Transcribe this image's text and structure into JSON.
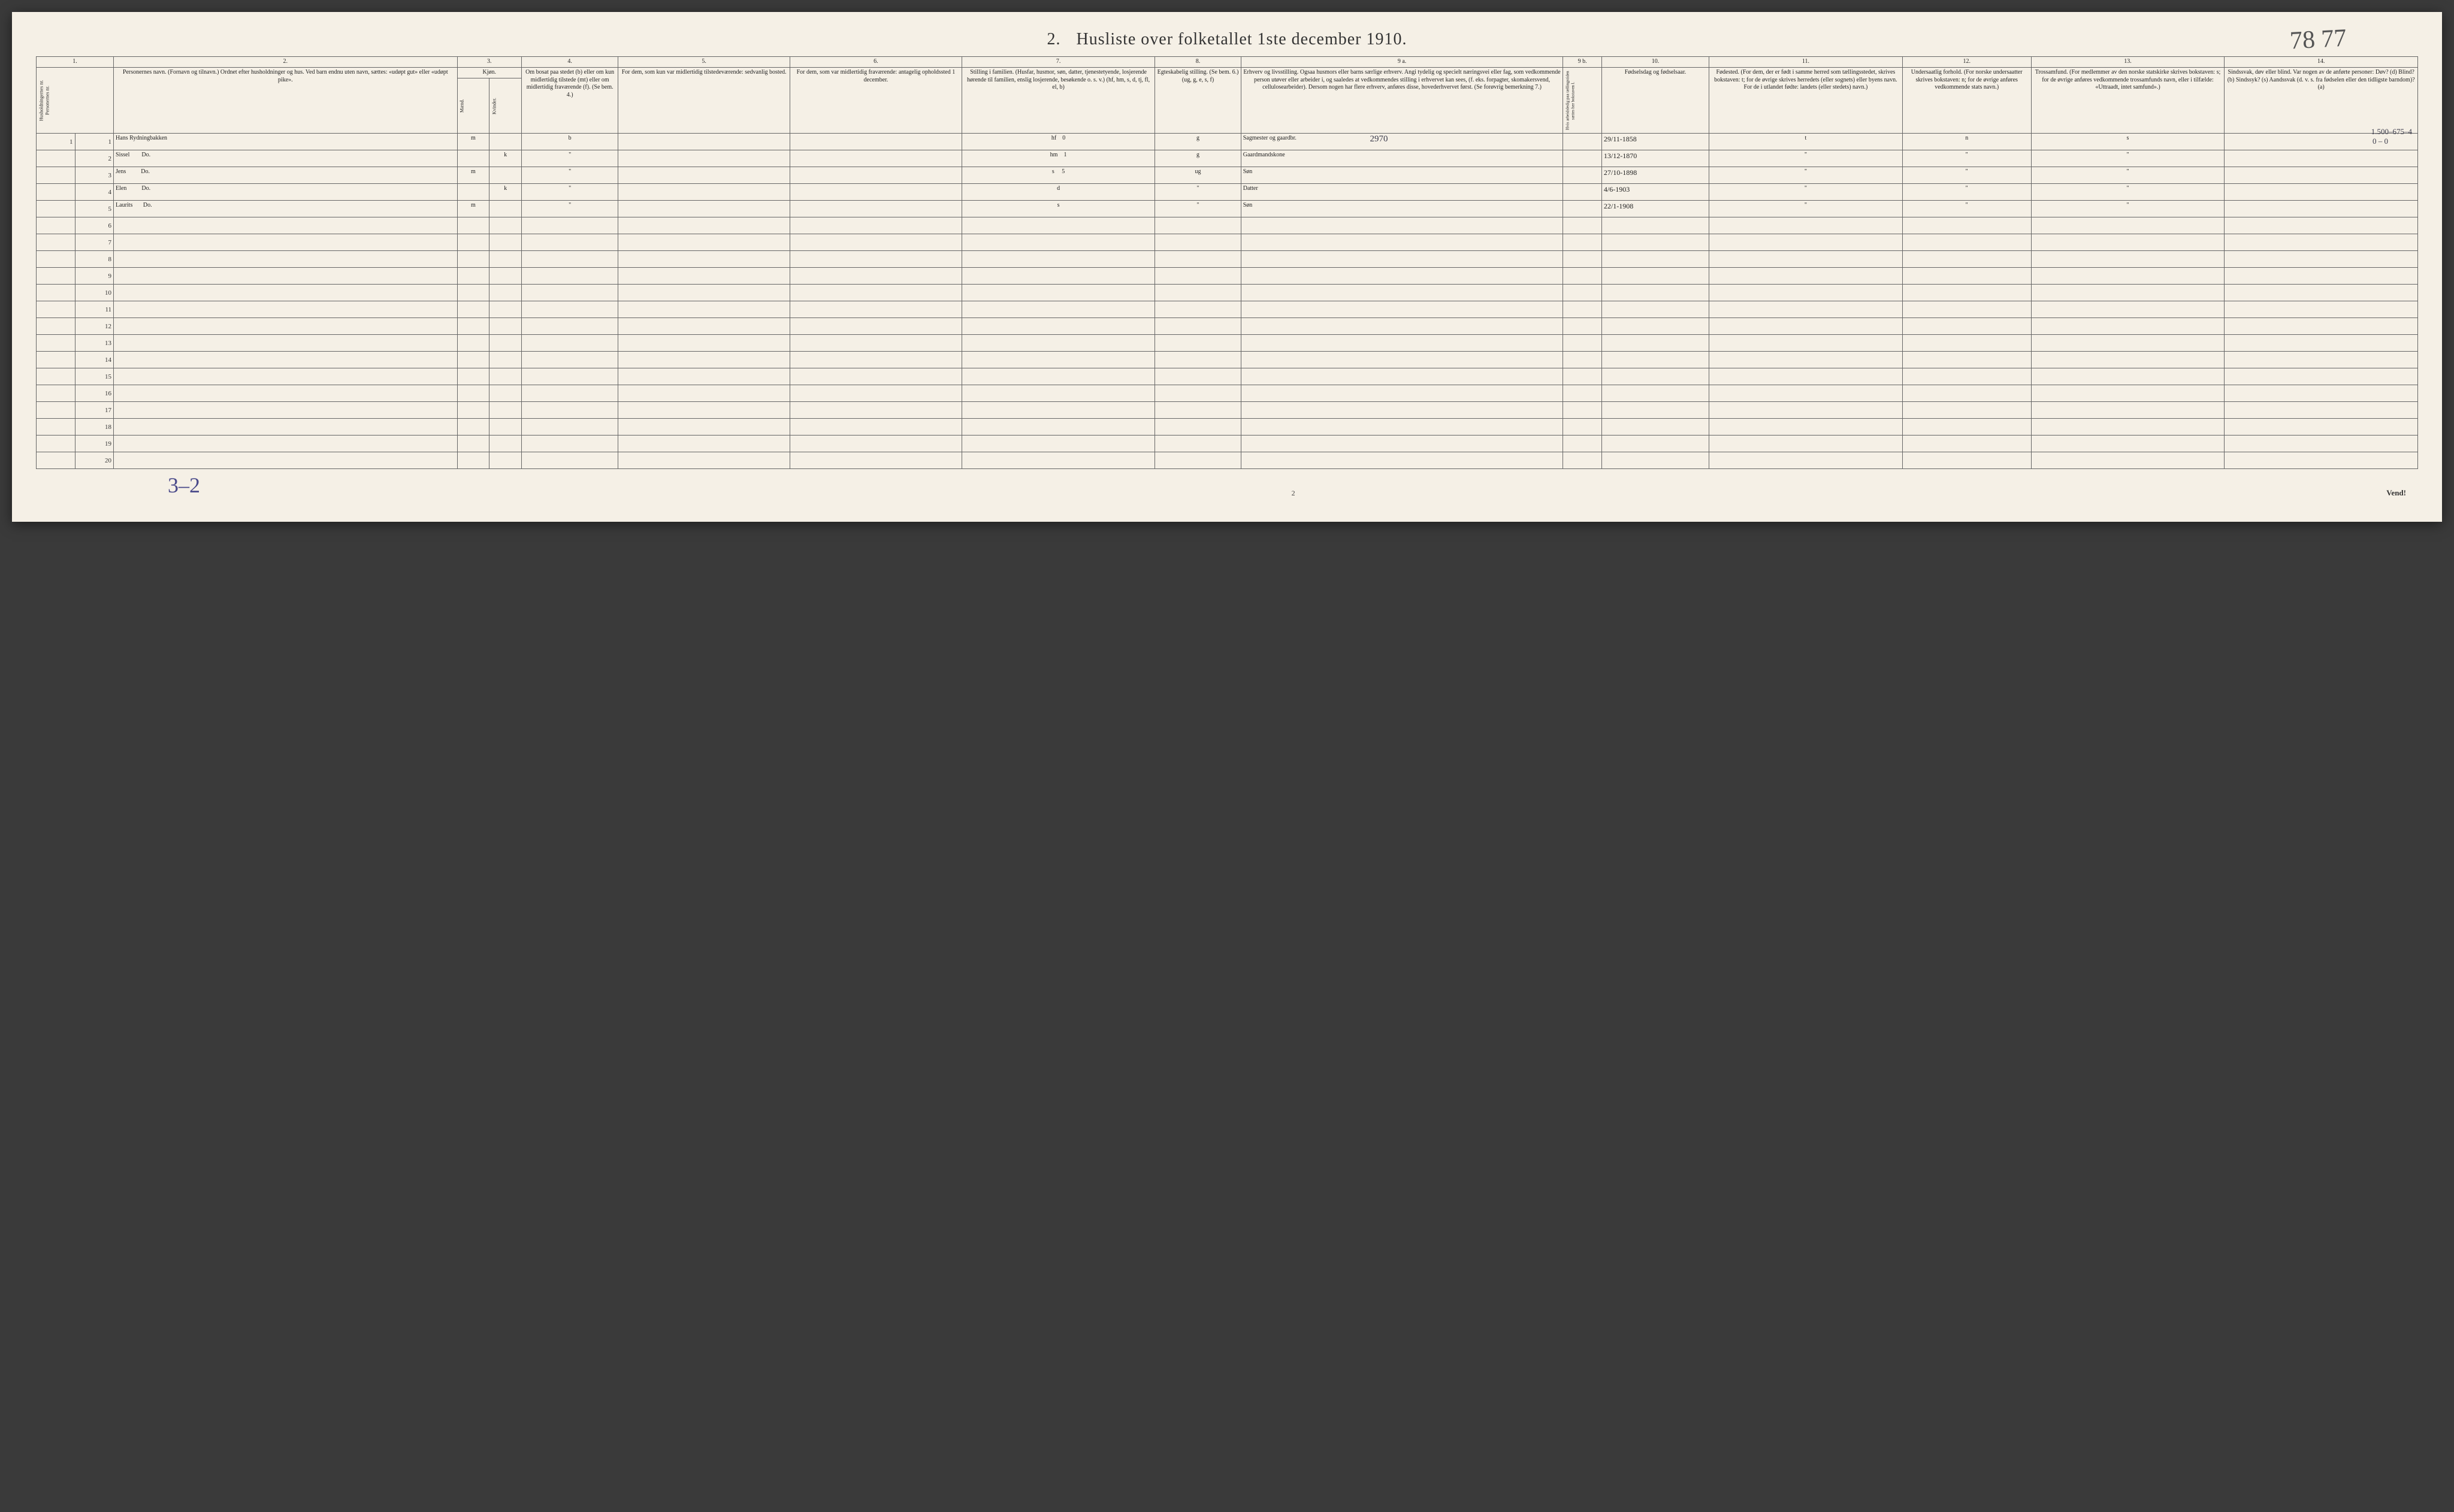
{
  "title_number": "2.",
  "title_text": "Husliste over folketallet 1ste december 1910.",
  "handwritten_top": "78 77",
  "handwritten_bottom": "3–2",
  "page_number_bottom": "2",
  "vend_text": "Vend!",
  "annotation_2970": "2970",
  "annotation_top_right_1": "1.500–675–4",
  "annotation_top_right_2": "0 – 0",
  "column_numbers": [
    "1.",
    "2.",
    "3.",
    "4.",
    "5.",
    "6.",
    "7.",
    "8.",
    "9 a.",
    "9 b.",
    "10.",
    "11.",
    "12.",
    "13.",
    "14."
  ],
  "headers": {
    "col1": "Husholdningernes nr.\nPersonernes nr.",
    "col2": "Personernes navn.\n(Fornavn og tilnavn.)\nOrdnet efter husholdninger og hus.\nVed barn endnu uten navn, sættes: «udøpt gut» eller «udøpt pike».",
    "col3": "Kjøn.",
    "col3_sub_m": "Mænd.",
    "col3_sub_k": "Kvinder.",
    "col3_bottom": "m. k.",
    "col4": "Om bosat paa stedet (b) eller om kun midlertidig tilstede (mt) eller om midlertidig fraværende (f).\n(Se bem. 4.)",
    "col5": "For dem, som kun var midlertidig tilstedeværende:\nsedvanlig bosted.",
    "col6": "For dem, som var midlertidig fraværende:\nantagelig opholdssted 1 december.",
    "col7": "Stilling i familien.\n(Husfar, husmor, søn, datter, tjenestetyende, losjerende hørende til familien, enslig losjerende, besøkende o. s. v.)\n(hf, hm, s, d, tj, fl, el, b)",
    "col8": "Egteskabelig stilling.\n(Se bem. 6.)\n(ug, g, e, s, f)",
    "col9a": "Erhverv og livsstilling.\nOgsaa husmors eller barns særlige erhverv.\nAngi tydelig og specielt næringsvei eller fag, som vedkommende person utøver eller arbeider i, og saaledes at vedkommendes stilling i erhvervet kan sees, (f. eks. forpagter, skomakersvend, cellulosearbeider). Dersom nogen har flere erhverv, anføres disse, hovederhvervet først.\n(Se forøvrig bemerkning 7.)",
    "col9b": "Hvis arbeidsledig paa tællingstiden sættes her bokstaven l.",
    "col10": "Fødselsdag og fødselsaar.",
    "col11": "Fødested.\n(For dem, der er født i samme herred som tællingsstedet, skrives bokstaven: t; for de øvrige skrives herredets (eller sognets) eller byens navn. For de i utlandet fødte: landets (eller stedets) navn.)",
    "col12": "Undersaatlig forhold.\n(For norske undersaatter skrives bokstaven: n; for de øvrige anføres vedkommende stats navn.)",
    "col13": "Trossamfund.\n(For medlemmer av den norske statskirke skrives bokstaven: s; for de øvrige anføres vedkommende trossamfunds navn, eller i tilfælde: «Uttraadt, intet samfund».)",
    "col14": "Sindssvak, døv eller blind.\nVar nogen av de anførte personer:\nDøv? (d)\nBlind? (b)\nSindssyk? (s)\nAandssvak (d. v. s. fra fødselen eller den tidligste barndom)? (a)"
  },
  "rows": [
    {
      "hh": "1",
      "p": "1",
      "name": "Hans Rydningbakken",
      "sex": "m",
      "bosat": "b",
      "col5": "",
      "col6": "",
      "stilling": "hf    0",
      "egte": "g",
      "erhverv": "Sagmester og gaardbr.",
      "col9b": "",
      "fodsel": "29/11-1858",
      "fodested": "t",
      "undersaat": "n",
      "tros": "s",
      "col14": ""
    },
    {
      "hh": "",
      "p": "2",
      "name": "Sissel        Do.",
      "sex": "k",
      "bosat": "\"",
      "col5": "",
      "col6": "",
      "stilling": "hm    1",
      "egte": "g",
      "erhverv": "Gaardmandskone",
      "col9b": "",
      "fodsel": "13/12-1870",
      "fodested": "\"",
      "undersaat": "\"",
      "tros": "\"",
      "col14": ""
    },
    {
      "hh": "",
      "p": "3",
      "name": "Jens          Do.",
      "sex": "m",
      "bosat": "\"",
      "col5": "",
      "col6": "",
      "stilling": "s     5",
      "egte": "ug",
      "erhverv": "Søn",
      "col9b": "",
      "fodsel": "27/10-1898",
      "fodested": "\"",
      "undersaat": "\"",
      "tros": "\"",
      "col14": ""
    },
    {
      "hh": "",
      "p": "4",
      "name": "Elen          Do.",
      "sex": "k",
      "bosat": "\"",
      "col5": "",
      "col6": "",
      "stilling": "d",
      "egte": "\"",
      "erhverv": "Datter",
      "col9b": "",
      "fodsel": "4/6-1903",
      "fodested": "\"",
      "undersaat": "\"",
      "tros": "\"",
      "col14": ""
    },
    {
      "hh": "",
      "p": "5",
      "name": "Laurits       Do.",
      "sex": "m",
      "bosat": "\"",
      "col5": "",
      "col6": "",
      "stilling": "s",
      "egte": "\"",
      "erhverv": "Søn",
      "col9b": "",
      "fodsel": "22/1-1908",
      "fodested": "\"",
      "undersaat": "\"",
      "tros": "\"",
      "col14": ""
    }
  ],
  "empty_rows_start": 6,
  "empty_rows_end": 20,
  "colors": {
    "page_bg": "#f5f0e6",
    "border": "#666666",
    "text": "#222222",
    "handwriting": "#3a3a4a",
    "handwriting_blue": "#4a4a8a",
    "body_bg": "#3a3a3a"
  },
  "col_widths_pct": [
    1.8,
    1.8,
    16,
    1.5,
    1.5,
    4.5,
    8,
    8,
    9,
    4,
    15,
    1.8,
    5,
    9,
    6,
    9,
    9
  ]
}
